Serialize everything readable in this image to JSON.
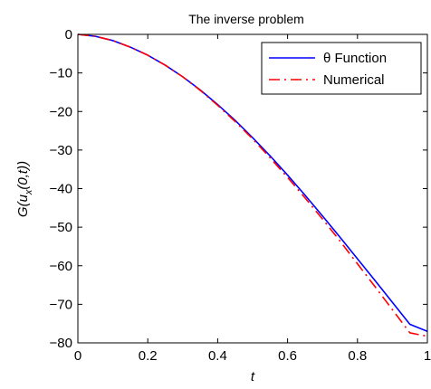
{
  "chart_data": {
    "type": "line",
    "title": "The inverse problem",
    "xlabel": "t",
    "ylabel": "G(u_x(0,t))",
    "xlim": [
      0,
      1
    ],
    "ylim": [
      -80,
      0
    ],
    "x_ticks": [
      "0",
      "0.2",
      "0.4",
      "0.6",
      "0.8",
      "1"
    ],
    "y_ticks": [
      "0",
      "−10",
      "−20",
      "−30",
      "−40",
      "−50",
      "−60",
      "−70",
      "−80"
    ],
    "grid": false,
    "legend_position": "top-right",
    "series": [
      {
        "name": "θ Function",
        "color": "#0000ff",
        "dash": "solid",
        "x": [
          0,
          0.05,
          0.1,
          0.15,
          0.2,
          0.25,
          0.3,
          0.35,
          0.4,
          0.45,
          0.5,
          0.55,
          0.6,
          0.65,
          0.7,
          0.75,
          0.8,
          0.85,
          0.9,
          0.95,
          1.0
        ],
        "y": [
          0,
          -0.5,
          -1.6,
          -3.3,
          -5.4,
          -8.0,
          -11.0,
          -14.4,
          -18.2,
          -22.3,
          -26.8,
          -31.5,
          -36.5,
          -41.7,
          -47.1,
          -52.6,
          -58.2,
          -63.8,
          -69.5,
          -75.2,
          -77.0
        ]
      },
      {
        "name": "Numerical",
        "color": "#ff0000",
        "dash": "dashdot",
        "x": [
          0,
          0.05,
          0.1,
          0.15,
          0.2,
          0.25,
          0.3,
          0.35,
          0.4,
          0.45,
          0.5,
          0.55,
          0.6,
          0.65,
          0.7,
          0.75,
          0.8,
          0.85,
          0.9,
          0.95,
          1.0
        ],
        "y": [
          0,
          -0.5,
          -1.6,
          -3.3,
          -5.4,
          -8.0,
          -11.0,
          -14.5,
          -18.4,
          -22.6,
          -27.1,
          -32.0,
          -37.1,
          -42.4,
          -47.9,
          -53.6,
          -59.5,
          -65.4,
          -71.4,
          -77.4,
          -78.3
        ]
      }
    ]
  }
}
